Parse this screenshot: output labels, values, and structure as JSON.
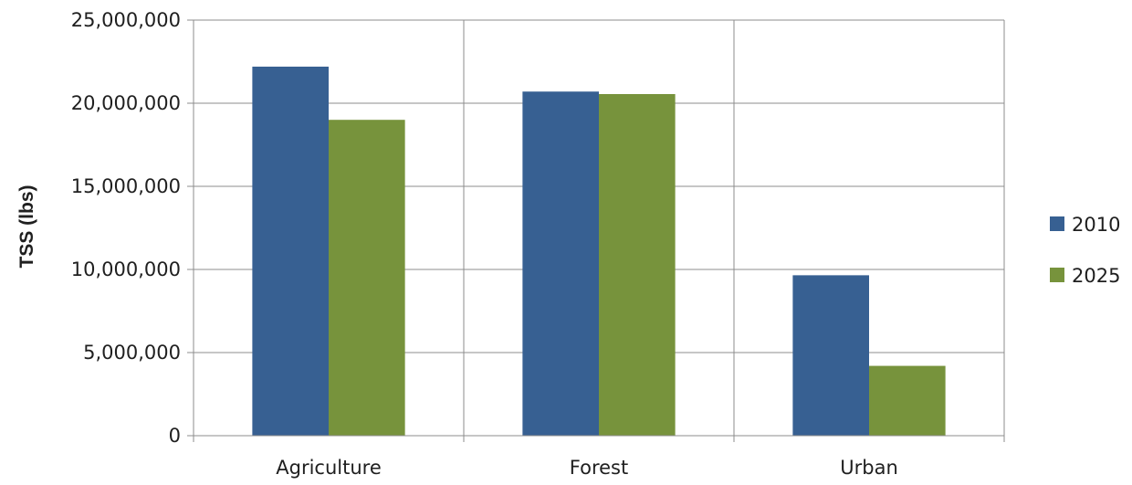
{
  "chart_data": {
    "type": "bar",
    "categories": [
      "Agriculture",
      "Forest",
      "Urban"
    ],
    "series": [
      {
        "name": "2010",
        "color": "#376092",
        "values": [
          22200000,
          20700000,
          9650000
        ]
      },
      {
        "name": "2025",
        "color": "#77933c",
        "values": [
          19000000,
          20550000,
          4200000
        ]
      }
    ],
    "ylabel": "TSS (lbs)",
    "xlabel": "",
    "ylim": [
      0,
      25000000
    ],
    "yticks": [
      0,
      5000000,
      10000000,
      15000000,
      20000000,
      25000000
    ],
    "ytick_labels": [
      "0",
      "5,000,000",
      "10,000,000",
      "15,000,000",
      "20,000,000",
      "25,000,000"
    ],
    "grid": true,
    "legend_position": "right"
  }
}
